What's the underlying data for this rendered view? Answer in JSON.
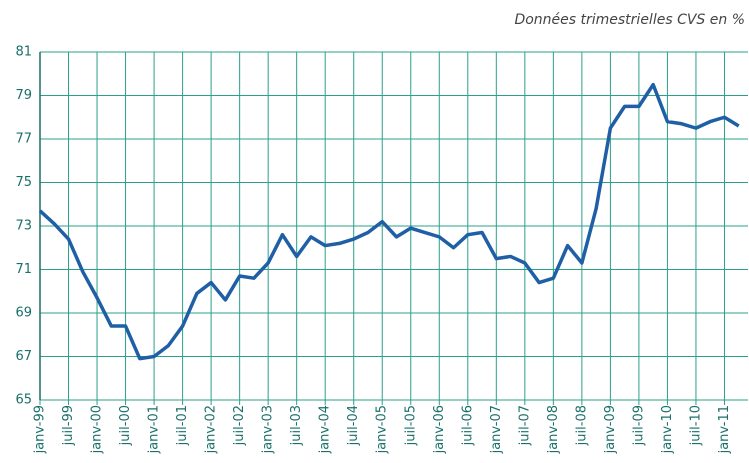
{
  "chart_data": {
    "type": "line",
    "subtitle": "Données trimestrielles CVS en %",
    "categories": [
      "janv-99",
      null,
      "juil-99",
      null,
      "janv-00",
      null,
      "juil-00",
      null,
      "janv-01",
      null,
      "juil-01",
      null,
      "janv-02",
      null,
      "juil-02",
      null,
      "janv-03",
      null,
      "juil-03",
      null,
      "janv-04",
      null,
      "juil-04",
      null,
      "janv-05",
      null,
      "juil-05",
      null,
      "janv-06",
      null,
      "juil-06",
      null,
      "janv-07",
      null,
      "juil-07",
      null,
      "janv-08",
      null,
      "juil-08",
      null,
      "janv-09",
      null,
      "juil-09",
      null,
      "janv-10",
      null,
      "juil-10",
      null,
      "janv-11",
      null
    ],
    "series": [
      {
        "color": "#1f5fa6",
        "values": [
          73.7,
          73.1,
          72.4,
          70.9,
          69.7,
          68.4,
          68.4,
          66.9,
          67.0,
          67.5,
          68.4,
          69.9,
          70.4,
          69.6,
          70.7,
          70.6,
          71.3,
          72.6,
          71.6,
          72.5,
          72.1,
          72.2,
          72.4,
          72.7,
          73.2,
          72.5,
          72.9,
          72.7,
          72.5,
          72.0,
          72.6,
          72.7,
          71.5,
          71.6,
          71.3,
          70.4,
          70.6,
          72.1,
          71.3,
          73.8,
          77.5,
          78.5,
          78.5,
          79.5,
          77.8,
          77.7,
          77.5,
          77.8,
          78.0,
          77.6
        ]
      }
    ],
    "ylim": [
      65,
      81
    ],
    "yticks": [
      65,
      67,
      69,
      71,
      73,
      75,
      77,
      79,
      81
    ],
    "grid": true
  }
}
